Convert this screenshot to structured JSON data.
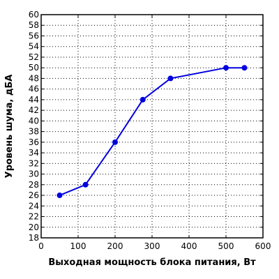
{
  "chart_data": {
    "type": "line",
    "title": "",
    "xlabel": "Выходная мощность блока питания, Вт",
    "ylabel": "Уровень шума, дБА",
    "xlim": [
      0,
      600
    ],
    "ylim": [
      18,
      60
    ],
    "x_ticks": [
      0,
      100,
      200,
      300,
      400,
      500,
      600
    ],
    "y_ticks": [
      18,
      20,
      22,
      24,
      26,
      28,
      30,
      32,
      34,
      36,
      38,
      40,
      42,
      44,
      46,
      48,
      50,
      52,
      54,
      56,
      58,
      60
    ],
    "grid": true,
    "series": [
      {
        "color": "#0000dd",
        "x": [
          50,
          120,
          200,
          275,
          350,
          500,
          550
        ],
        "y": [
          26,
          28,
          36,
          44,
          48,
          50,
          50
        ]
      }
    ]
  }
}
